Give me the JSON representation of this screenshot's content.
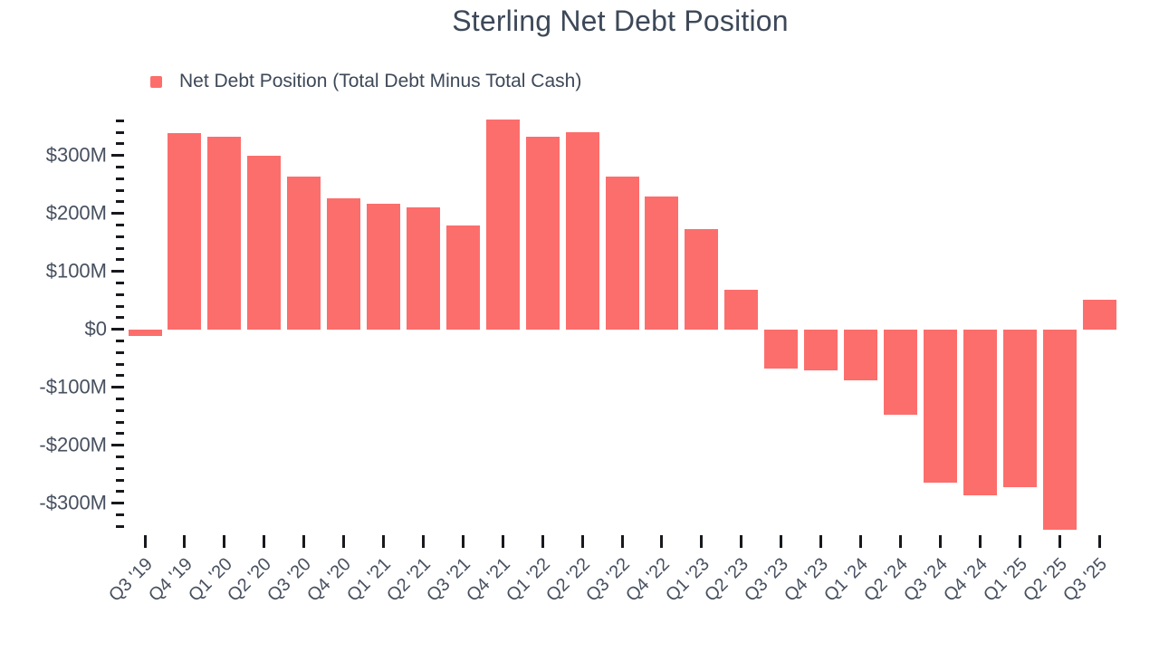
{
  "chart_data": {
    "type": "bar",
    "title": "Sterling Net Debt Position",
    "legend_position": "top-left",
    "grid": false,
    "categories": [
      "Q3 '19",
      "Q4 '19",
      "Q1 '20",
      "Q2 '20",
      "Q3 '20",
      "Q4 '20",
      "Q1 '21",
      "Q2 '21",
      "Q3 '21",
      "Q4 '21",
      "Q1 '22",
      "Q2 '22",
      "Q3 '22",
      "Q4 '22",
      "Q1 '23",
      "Q2 '23",
      "Q3 '23",
      "Q4 '23",
      "Q1 '24",
      "Q2 '24",
      "Q3 '24",
      "Q4 '24",
      "Q1 '25",
      "Q2 '25",
      "Q3 '25"
    ],
    "series": [
      {
        "name": "Net Debt Position (Total Debt Minus Total Cash)",
        "color": "#FC6E6C",
        "unit": "$M",
        "values": [
          -12,
          339,
          333,
          300,
          263,
          226,
          217,
          210,
          180,
          362,
          333,
          340,
          264,
          229,
          173,
          68,
          -68,
          -71,
          -88,
          -147,
          -265,
          -286,
          -273,
          -346,
          51
        ]
      }
    ],
    "y_axis": {
      "range": [
        -360,
        370
      ],
      "minor_tick_step": 20,
      "ticks": [
        {
          "value": 300,
          "label": "$300M"
        },
        {
          "value": 200,
          "label": "$200M"
        },
        {
          "value": 100,
          "label": "$100M"
        },
        {
          "value": 0,
          "label": "$0"
        },
        {
          "value": -100,
          "label": "-$100M"
        },
        {
          "value": -200,
          "label": "-$200M"
        },
        {
          "value": -300,
          "label": "-$300M"
        }
      ]
    },
    "colors": {
      "bar": "#FC6E6C",
      "title_text": "#3D4858",
      "axis_label_text": "#47505F",
      "tick_marks": "#17191D",
      "background": "#FFFFFF"
    }
  }
}
